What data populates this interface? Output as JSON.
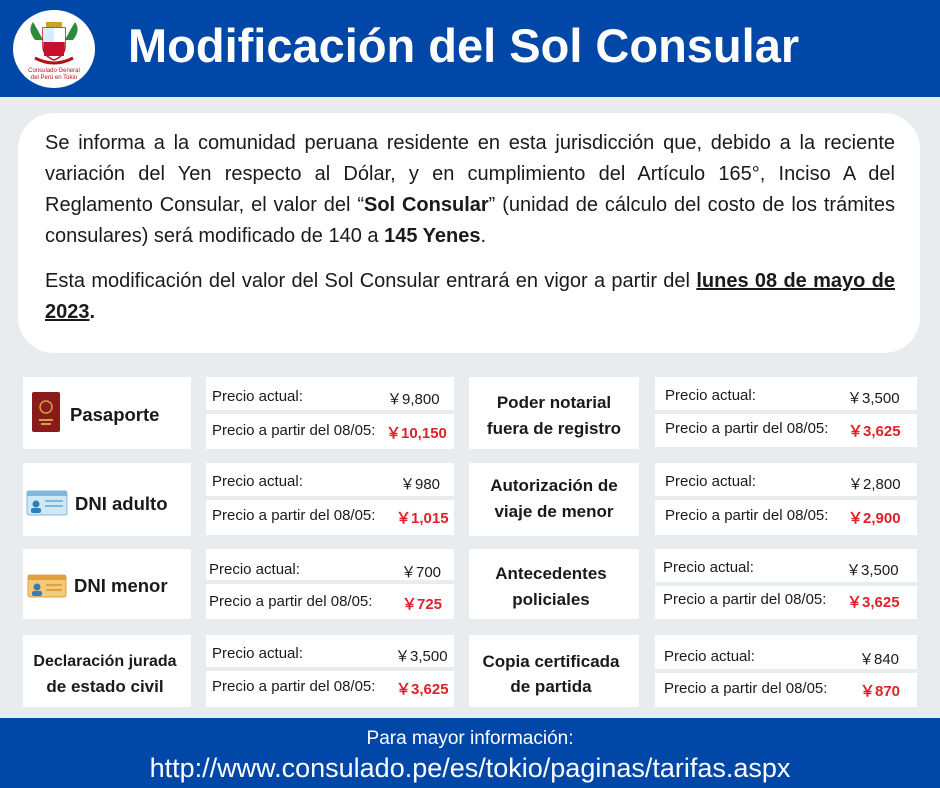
{
  "header": {
    "title": "Modificación del Sol Consular",
    "logo_text_1": "Consulado General",
    "logo_text_2": "del Perú en Tokio"
  },
  "notice": {
    "p1_a": "Se informa a la comunidad peruana residente en esta jurisdicción  que,  debido a  la reciente variación del  Yen  respecto  al  Dólar,  y  en  cumplimiento  del  Artículo  165°,  Inciso  A  del  Reglamento  Consular,  el valor del  “",
    "p1_bold1": "Sol Consular",
    "p1_b": "”  (unidad  de  cálculo  del  costo  de  los  trámites  consulares)  será  modificado  de  140  a  ",
    "p1_bold2": "145 Yenes",
    "p1_c": ".",
    "p2_a": "Esta  modificación  del  valor  del  Sol  Consular  entrará  en  vigor  a  partir  del ",
    "p2_date": " lunes 08  de  mayo de  2023",
    "p2_b": "."
  },
  "current_label": "Precio actual:",
  "new_label": "Precio a partir del 08/05:",
  "procedures": [
    {
      "name": "Pasaporte",
      "current": "￥9,800",
      "new": "￥10,150"
    },
    {
      "name": "DNI adulto",
      "current": "￥980",
      "new": "￥1,015"
    },
    {
      "name": "DNI menor",
      "current": "￥700",
      "new": "￥725"
    },
    {
      "name_1": "Declaración jurada",
      "name_2": "de estado civil",
      "current": "￥3,500",
      "new": "￥3,625"
    },
    {
      "name_1": "Poder notarial",
      "name_2": "fuera de registro",
      "current": "￥3,500",
      "new": "￥3,625"
    },
    {
      "name_1": "Autorización de",
      "name_2": "viaje de menor",
      "current": "￥2,800",
      "new": "￥2,900"
    },
    {
      "name_1": "Antecedentes",
      "name_2": "policiales",
      "current": "￥3,500",
      "new": "￥3,625"
    },
    {
      "name_1": "Copia certificada",
      "name_2": "de partida",
      "current": "￥840",
      "new": "￥870"
    }
  ],
  "footer": {
    "line1": "Para mayor información:",
    "url": "http://www.consulado.pe/es/tokio/paginas/tarifas.aspx"
  },
  "colors": {
    "brand_blue": "#0047a8",
    "price_red": "#e0202a",
    "background": "#e9ecef"
  }
}
